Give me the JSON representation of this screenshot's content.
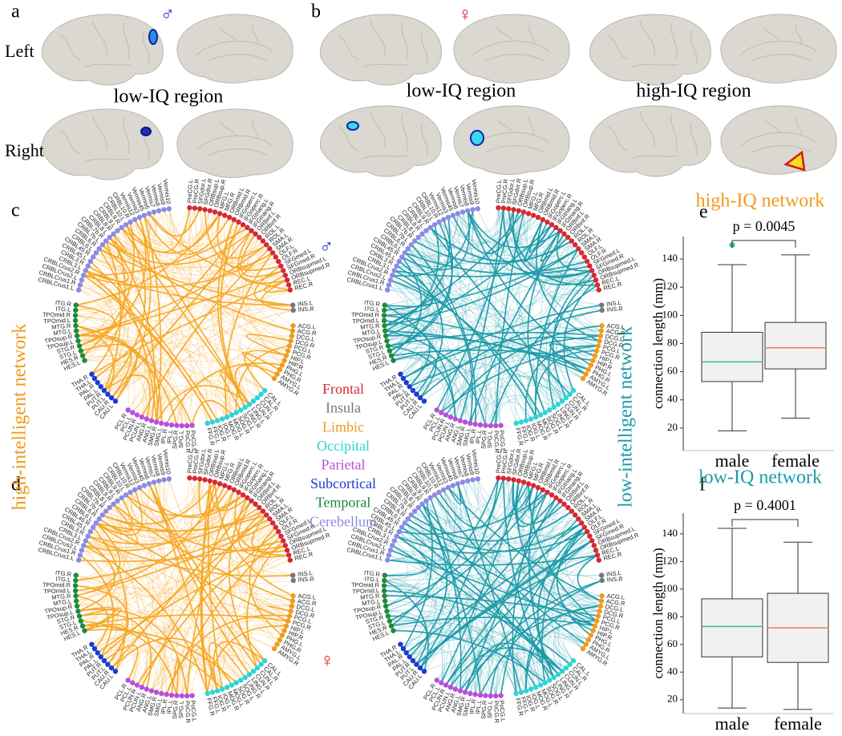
{
  "panel_labels": [
    "a",
    "b",
    "c",
    "d",
    "e",
    "f"
  ],
  "brain_panel": {
    "left": "Left",
    "right": "Right",
    "male_symbol": "♂",
    "female_symbol": "♀",
    "captions": [
      "low-IQ region",
      "low-IQ region",
      "high-IQ region"
    ]
  },
  "networks": {
    "high_title": "high-intelligent network",
    "low_title": "low-intelligent network",
    "male_symbol": "♂",
    "female_symbol": "♀",
    "groups": [
      {
        "name": "Frontal",
        "color": "#d42a35",
        "regions": [
          "PreCG.L",
          "PreCG.R",
          "SFGdor.L",
          "SFGdor.R",
          "ORBsup.L",
          "ORBsup.R",
          "MFG.L",
          "MFG.R",
          "ORBmid.L",
          "ORBmid.R",
          "IFGoperc.L",
          "IFGoperc.R",
          "IFGtriang.L",
          "IFGtriang.R",
          "ORBinf.L",
          "ORBinf.R",
          "ROL.L",
          "ROL.R",
          "SMA.L",
          "SMA.R",
          "OLF.L",
          "OLF.R",
          "SFGmed.L",
          "SFGmed.R",
          "ORBsupmed.L",
          "ORBsupmed.R",
          "REC.L",
          "REC.R"
        ]
      },
      {
        "name": "Insula",
        "color": "#777777",
        "regions": [
          "INS.L",
          "INS.R"
        ]
      },
      {
        "name": "Limbic",
        "color": "#f09a1e",
        "regions": [
          "ACG.L",
          "ACG.R",
          "DCG.L",
          "DCG.R",
          "PCG.L",
          "PCG.R",
          "HIP.L",
          "HIP.R",
          "PHG.L",
          "PHG.R",
          "AMYG.L",
          "AMYG.R"
        ]
      },
      {
        "name": "Occipital",
        "color": "#2fd3d6",
        "regions": [
          "CAL.L",
          "CAL.R",
          "CUN.L",
          "CUN.R",
          "LING.L",
          "LING.R",
          "SOG.L",
          "SOG.R",
          "MOG.L",
          "MOG.R",
          "IOG.L",
          "IOG.R",
          "FFG.L",
          "FFG.R"
        ]
      },
      {
        "name": "Parietal",
        "color": "#b94fd8",
        "regions": [
          "PoCG.L",
          "PoCG.R",
          "SPG.L",
          "SPG.R",
          "IPL.L",
          "IPL.R",
          "SMG.L",
          "SMG.R",
          "ANG.L",
          "ANG.R",
          "PCUN.L",
          "PCUN.R",
          "PCL.L",
          "PCL.R"
        ]
      },
      {
        "name": "Subcortical",
        "color": "#1c3ad4",
        "regions": [
          "CAU.L",
          "CAU.R",
          "PUT.L",
          "PUT.R",
          "PAL.L",
          "PAL.R",
          "THA.L",
          "THA.R"
        ]
      },
      {
        "name": "Temporal",
        "color": "#1f8a3c",
        "regions": [
          "HES.L",
          "HES.R",
          "STG.L",
          "STG.R",
          "TPOsup.L",
          "TPOsup.R",
          "MTG.L",
          "MTG.R",
          "TPOmid.L",
          "TPOmid.R",
          "ITG.L",
          "ITG.R"
        ]
      },
      {
        "name": "Cerebellum",
        "color": "#8a8be0",
        "regions": [
          "CRBLCrus1.L",
          "CRBLCrus1.R",
          "CRBLCrus2.L",
          "CRBLCrus2.R",
          "CRBL3.L",
          "CRBL3.R",
          "CRBL45.L",
          "CRBL45.R",
          "CRBL6.L",
          "CRBL6.R",
          "CRBL7b.L",
          "CRBL7b.R",
          "CRBL8.L",
          "CRBL8.R",
          "CRBL9.L",
          "CRBL9.R",
          "CRBL10.L",
          "CRBL10.R",
          "Vermis12",
          "Vermis3",
          "Vermis45",
          "Vermis6",
          "Vermis7",
          "Vermis8",
          "Vermis9",
          "Vermis10"
        ]
      }
    ]
  },
  "chart_data": [
    {
      "type": "box",
      "title": "high-IQ network",
      "title_color": "#f09a1e",
      "ylabel": "connection length (mm)",
      "annotation": "p = 0.0045",
      "categories": [
        "male",
        "female"
      ],
      "colors": [
        "#3cb98b",
        "#f27d4f"
      ],
      "ylim": [
        4,
        156
      ],
      "yticks": [
        20,
        40,
        60,
        80,
        100,
        120,
        140
      ],
      "boxes": [
        {
          "whislo": 18,
          "q1": 53,
          "med": 67,
          "q3": 88,
          "whishi": 136,
          "fliers": [
            150
          ]
        },
        {
          "whislo": 27,
          "q1": 62,
          "med": 77,
          "q3": 95,
          "whishi": 143,
          "fliers": []
        }
      ]
    },
    {
      "type": "box",
      "title": "low-IQ network",
      "title_color": "#1a9aa8",
      "ylabel": "connection length (mm)",
      "annotation": "p = 0.4001",
      "categories": [
        "male",
        "female"
      ],
      "colors": [
        "#3cb98b",
        "#f27d4f"
      ],
      "ylim": [
        10,
        155
      ],
      "yticks": [
        20,
        40,
        60,
        80,
        100,
        120,
        140
      ],
      "boxes": [
        {
          "whislo": 14,
          "q1": 51,
          "med": 73,
          "q3": 93,
          "whishi": 144,
          "fliers": []
        },
        {
          "whislo": 13,
          "q1": 47,
          "med": 72,
          "q3": 97,
          "whishi": 134,
          "fliers": []
        }
      ]
    }
  ]
}
